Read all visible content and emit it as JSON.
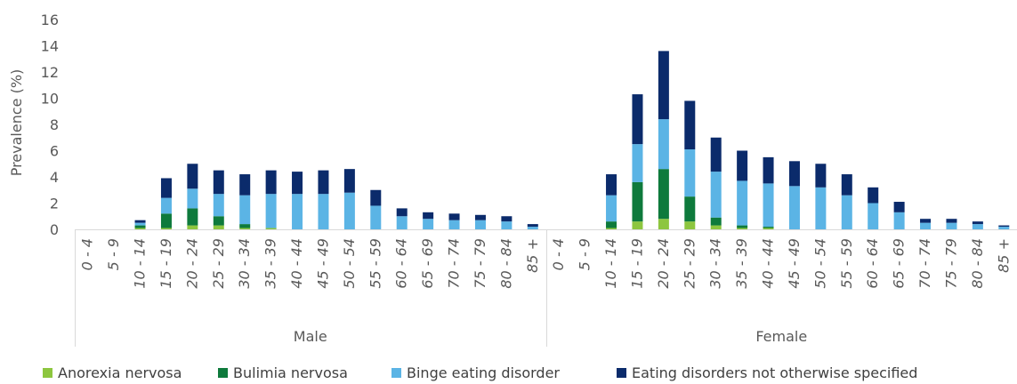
{
  "chart_data": {
    "type": "bar",
    "stacked": true,
    "ylabel": "Prevalence (%)",
    "xlabel": "",
    "ylim": [
      0,
      16
    ],
    "yticks": [
      0,
      2,
      4,
      6,
      8,
      10,
      12,
      14,
      16
    ],
    "grid": false,
    "legend_position": "bottom",
    "groups": [
      "Male",
      "Female"
    ],
    "categories": [
      "0 - 4",
      "5 - 9",
      "10 - 14",
      "15 - 19",
      "20 - 24",
      "25 - 29",
      "30 - 34",
      "35 - 39",
      "40 - 44",
      "45 - 49",
      "50 - 54",
      "55 - 59",
      "60 - 64",
      "65 - 69",
      "70 - 74",
      "75 - 79",
      "80 - 84",
      "85 +"
    ],
    "series": [
      {
        "name": "Anorexia nervosa",
        "color": "#8DC63F",
        "male": [
          0,
          0,
          0.1,
          0.1,
          0.3,
          0.3,
          0.1,
          0.1,
          0,
          0,
          0,
          0,
          0,
          0,
          0,
          0,
          0,
          0
        ],
        "female": [
          0,
          0,
          0.1,
          0.6,
          0.8,
          0.6,
          0.3,
          0.1,
          0.1,
          0,
          0,
          0,
          0,
          0,
          0,
          0,
          0,
          0
        ]
      },
      {
        "name": "Bulimia nervosa",
        "color": "#0E7A3C",
        "male": [
          0,
          0,
          0.2,
          1.1,
          1.3,
          0.7,
          0.3,
          0,
          0,
          0,
          0,
          0,
          0,
          0,
          0,
          0,
          0,
          0
        ],
        "female": [
          0,
          0,
          0.5,
          3.0,
          3.8,
          1.9,
          0.6,
          0.2,
          0.1,
          0,
          0,
          0,
          0,
          0,
          0,
          0,
          0,
          0
        ]
      },
      {
        "name": "Binge eating disorder",
        "color": "#5BB4E5",
        "male": [
          0,
          0,
          0.2,
          1.2,
          1.5,
          1.7,
          2.2,
          2.6,
          2.7,
          2.7,
          2.8,
          1.8,
          1.0,
          0.8,
          0.7,
          0.7,
          0.6,
          0.2
        ],
        "female": [
          0,
          0,
          2.0,
          2.9,
          3.8,
          3.6,
          3.5,
          3.4,
          3.3,
          3.3,
          3.2,
          2.6,
          2.0,
          1.3,
          0.5,
          0.5,
          0.4,
          0.2
        ]
      },
      {
        "name": "Eating disorders not otherwise specified",
        "color": "#0B2B6B",
        "male": [
          0,
          0,
          0.2,
          1.5,
          1.9,
          1.8,
          1.6,
          1.8,
          1.7,
          1.8,
          1.8,
          1.2,
          0.6,
          0.5,
          0.5,
          0.4,
          0.4,
          0.2
        ],
        "female": [
          0,
          0,
          1.6,
          3.8,
          5.2,
          3.7,
          2.6,
          2.3,
          2.0,
          1.9,
          1.8,
          1.6,
          1.2,
          0.8,
          0.3,
          0.3,
          0.2,
          0.1
        ]
      }
    ]
  }
}
